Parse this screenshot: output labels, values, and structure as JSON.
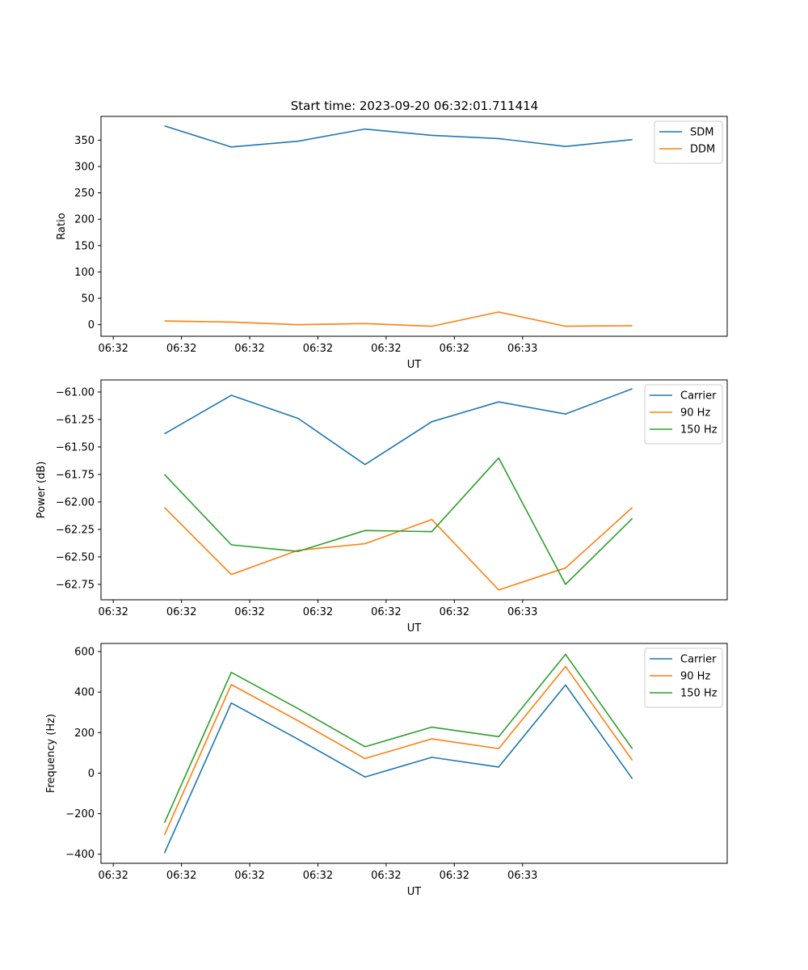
{
  "chart_data": [
    {
      "type": "line",
      "title": "Start time: 2023-09-20 06:32:01.711414",
      "xlabel": "UT",
      "ylabel": "Ratio",
      "x_tick_labels": [
        "06:32",
        "06:32",
        "06:32",
        "06:32",
        "06:32",
        "06:32",
        "06:33"
      ],
      "xlim": [
        -0.18,
        9.0
      ],
      "x": [
        0.75,
        1.73,
        2.71,
        3.69,
        4.67,
        5.65,
        6.63,
        7.61
      ],
      "ylim": [
        -22,
        395
      ],
      "yticks": [
        0,
        50,
        100,
        150,
        200,
        250,
        300,
        350
      ],
      "legend_position": "top-right",
      "series": [
        {
          "name": "SDM",
          "color": "#1f77b4",
          "values": [
            377,
            337,
            348,
            371,
            359,
            353,
            338,
            351
          ]
        },
        {
          "name": "DDM",
          "color": "#ff7f0e",
          "values": [
            7,
            5,
            0,
            2,
            -3,
            24,
            -3,
            -2
          ]
        }
      ]
    },
    {
      "type": "line",
      "title": "",
      "xlabel": "UT",
      "ylabel": "Power (dB)",
      "x_tick_labels": [
        "06:32",
        "06:32",
        "06:32",
        "06:32",
        "06:32",
        "06:32",
        "06:33"
      ],
      "xlim": [
        -0.18,
        9.0
      ],
      "x": [
        0.75,
        1.73,
        2.71,
        3.69,
        4.67,
        5.65,
        6.63,
        7.61
      ],
      "ylim": [
        -62.89,
        -60.89
      ],
      "yticks": [
        -62.75,
        -62.5,
        -62.25,
        -62.0,
        -61.75,
        -61.5,
        -61.25,
        -61.0
      ],
      "ytick_labels": [
        "−62.75",
        "−62.50",
        "−62.25",
        "−62.00",
        "−61.75",
        "−61.50",
        "−61.25",
        "−61.00"
      ],
      "legend_position": "top-right",
      "series": [
        {
          "name": "Carrier",
          "color": "#1f77b4",
          "values": [
            -61.38,
            -61.03,
            -61.24,
            -61.66,
            -61.27,
            -61.09,
            -61.2,
            -60.97
          ]
        },
        {
          "name": "90 Hz",
          "color": "#ff7f0e",
          "values": [
            -62.05,
            -62.66,
            -62.44,
            -62.38,
            -62.16,
            -62.8,
            -62.6,
            -62.05
          ]
        },
        {
          "name": "150 Hz",
          "color": "#2ca02c",
          "values": [
            -61.75,
            -62.39,
            -62.45,
            -62.26,
            -62.27,
            -61.6,
            -62.75,
            -62.15
          ]
        }
      ]
    },
    {
      "type": "line",
      "title": "",
      "xlabel": "UT",
      "ylabel": "Frequency (Hz)",
      "x_tick_labels": [
        "06:32",
        "06:32",
        "06:32",
        "06:32",
        "06:32",
        "06:32",
        "06:33"
      ],
      "xlim": [
        -0.18,
        9.0
      ],
      "x": [
        0.75,
        1.73,
        2.71,
        3.69,
        4.67,
        5.65,
        6.63,
        7.61
      ],
      "ylim": [
        -445,
        640
      ],
      "yticks": [
        -400,
        -200,
        0,
        200,
        400,
        600
      ],
      "ytick_labels": [
        "−400",
        "−200",
        "0",
        "200",
        "400",
        "600"
      ],
      "legend_position": "top-right",
      "series": [
        {
          "name": "Carrier",
          "color": "#1f77b4",
          "values": [
            -395,
            346,
            167,
            -19,
            78,
            30,
            435,
            -28
          ]
        },
        {
          "name": "90 Hz",
          "color": "#ff7f0e",
          "values": [
            -305,
            437,
            258,
            72,
            169,
            121,
            526,
            63
          ]
        },
        {
          "name": "150 Hz",
          "color": "#2ca02c",
          "values": [
            -245,
            497,
            318,
            130,
            227,
            180,
            586,
            120
          ]
        }
      ]
    }
  ]
}
